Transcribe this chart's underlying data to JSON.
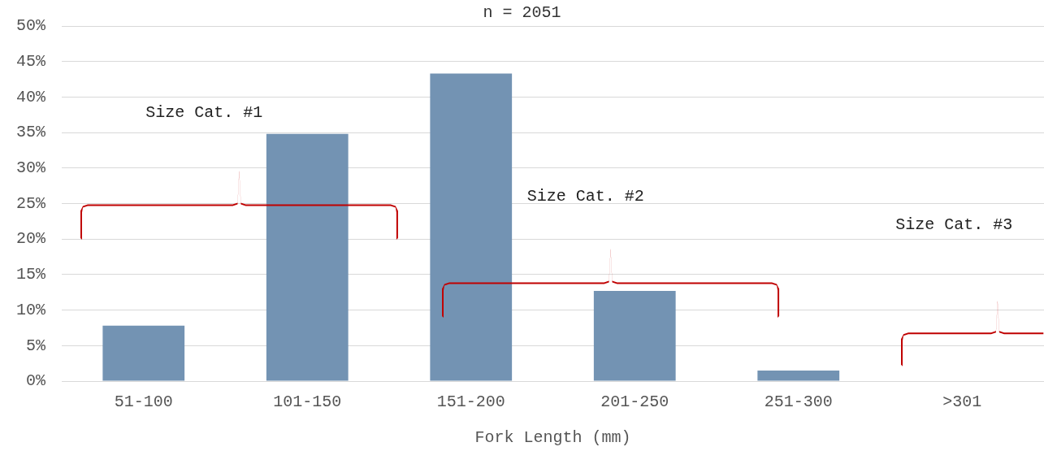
{
  "chart_data": {
    "type": "bar",
    "title": "n = 2051",
    "xlabel": "Fork Length (mm)",
    "categories": [
      "51-100",
      "101-150",
      "151-200",
      "201-250",
      "251-300",
      ">301"
    ],
    "values": [
      7.8,
      34.8,
      43.3,
      12.7,
      1.5,
      0
    ],
    "color": "#7393b3",
    "ylim": [
      0,
      50
    ],
    "yticks": [
      {
        "value": 0,
        "label": "0%"
      },
      {
        "value": 5,
        "label": "5%"
      },
      {
        "value": 10,
        "label": "10%"
      },
      {
        "value": 15,
        "label": "15%"
      },
      {
        "value": 20,
        "label": "20%"
      },
      {
        "value": 25,
        "label": "25%"
      },
      {
        "value": 30,
        "label": "30%"
      },
      {
        "value": 35,
        "label": "35%"
      },
      {
        "value": 40,
        "label": "40%"
      },
      {
        "value": 45,
        "label": "45%"
      },
      {
        "value": 50,
        "label": "50%"
      }
    ],
    "grid": "y",
    "legend": false,
    "annotations": [
      "Size Cat. #1",
      "Size Cat. #2",
      "Size Cat. #3"
    ]
  }
}
